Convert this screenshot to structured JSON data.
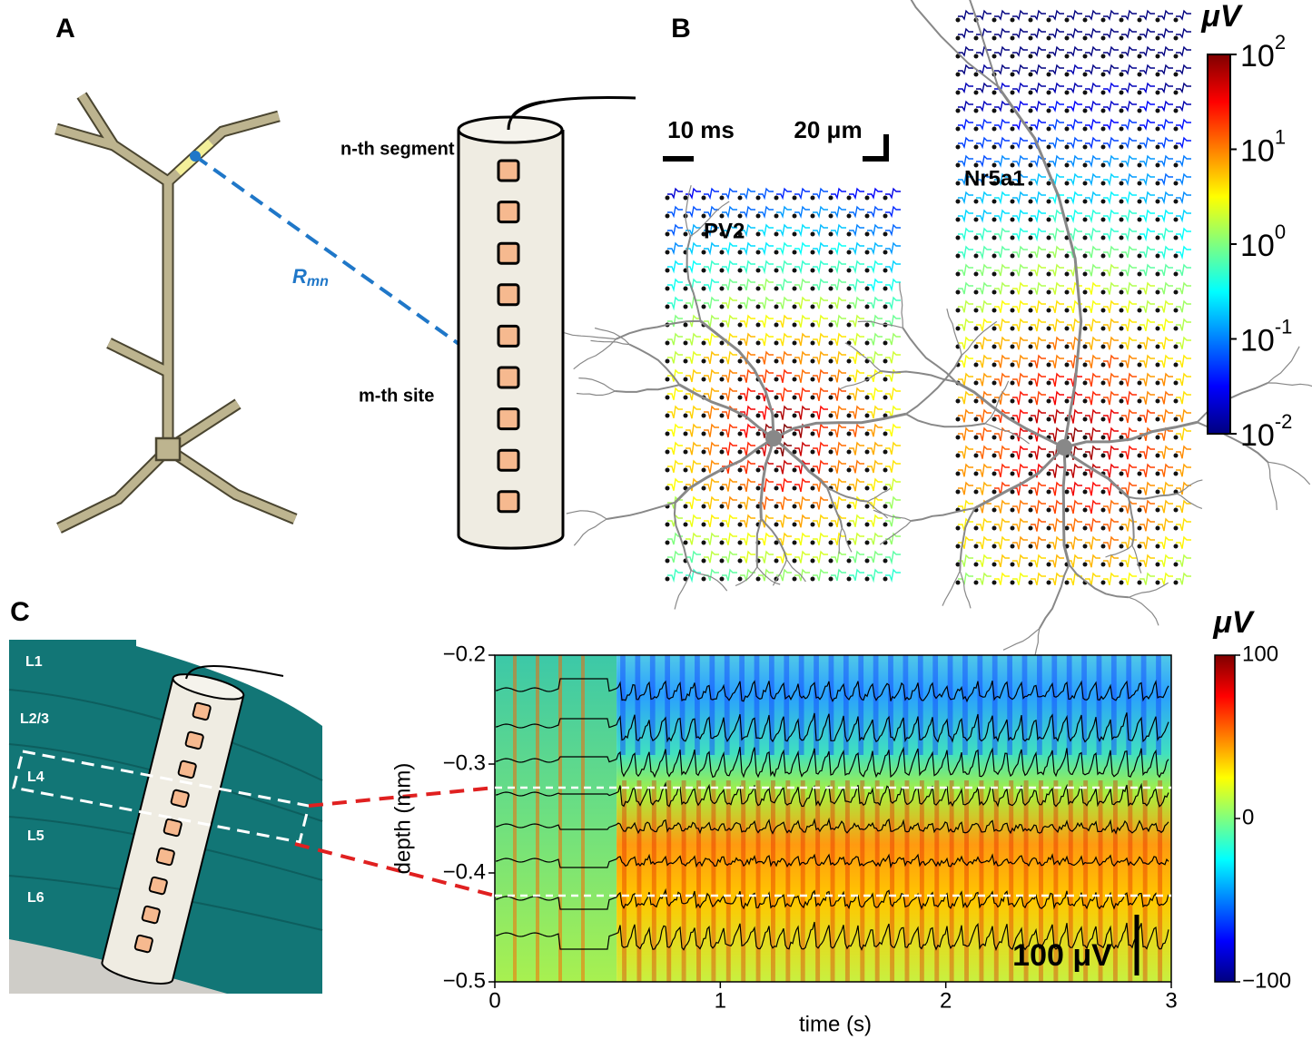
{
  "panel_a": {
    "label": "A",
    "segment_label": "n-th segment",
    "site_label": "m-th site",
    "distance_label": {
      "main": "R",
      "sub": "mn"
    }
  },
  "panel_b": {
    "label": "B",
    "time_scale": "10 ms",
    "space_scale": "20 μm",
    "cells": [
      "PV2",
      "Nr5a1"
    ],
    "colorbar": {
      "unit": "μV",
      "scale": "log",
      "lim": [
        0.01,
        100
      ],
      "ticks": [
        {
          "value": 100,
          "label": "10",
          "exponent": "2"
        },
        {
          "value": 10,
          "label": "10",
          "exponent": "1"
        },
        {
          "value": 1,
          "label": "10",
          "exponent": "0"
        },
        {
          "value": 0.1,
          "label": "10",
          "exponent": "-1"
        },
        {
          "value": 0.01,
          "label": "10",
          "exponent": "-2"
        }
      ]
    }
  },
  "panel_c": {
    "label": "C",
    "layers": [
      "L1",
      "L2/3",
      "L4",
      "L5",
      "L6"
    ],
    "xlabel": "time (s)",
    "ylabel": "depth (mm)",
    "xlim": [
      0,
      3
    ],
    "ylim": [
      -0.5,
      -0.2
    ],
    "xticks": [
      0,
      1,
      2,
      3
    ],
    "yticks": [
      {
        "value": -0.2,
        "label": "−0.2"
      },
      {
        "value": -0.3,
        "label": "−0.3"
      },
      {
        "value": -0.4,
        "label": "−0.4"
      },
      {
        "value": -0.5,
        "label": "−0.5"
      }
    ],
    "amplitude_scale": "100 μV",
    "colorbar": {
      "unit": "μV",
      "lim": [
        -100,
        100
      ],
      "ticks": [
        100,
        0,
        {
          "value": -100,
          "label": "−100"
        }
      ]
    }
  }
}
